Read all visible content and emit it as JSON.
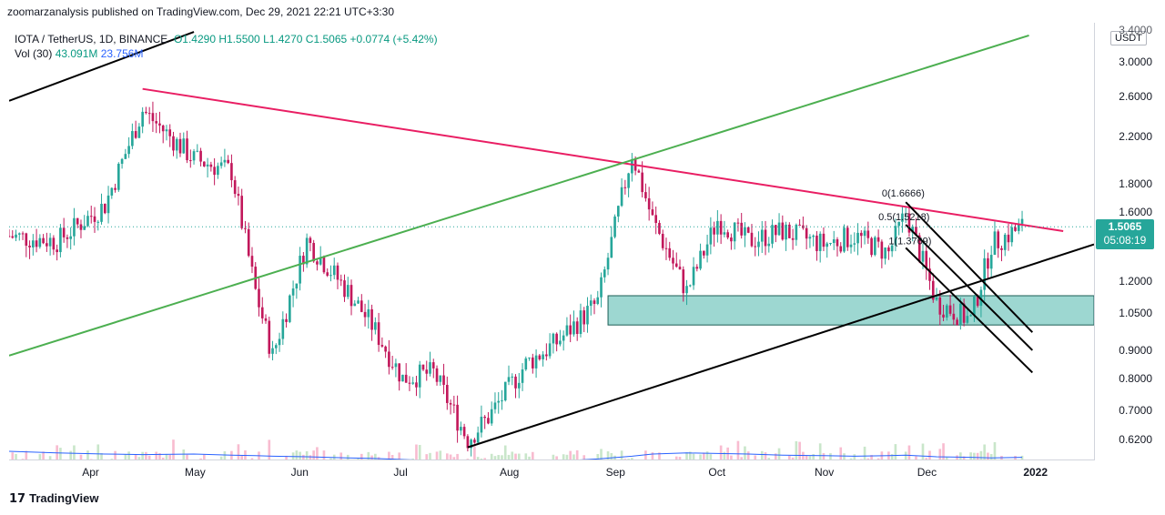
{
  "header": {
    "publisher_line": "zoomarzanalysis published on TradingView.com, Dec 29, 2021 22:21 UTC+3:30"
  },
  "legend": {
    "symbol": "IOTA / TetherUS, 1D, BINANCE",
    "open": "O1.4290",
    "high": "H1.5500",
    "low": "L1.4270",
    "close": "C1.5065",
    "change": "+0.0774 (+5.42%)",
    "vol_label": "Vol (30)",
    "vol_value": "43.091M",
    "vol_ma": "23.756M"
  },
  "price_axis": {
    "currency_badge": "USDT",
    "last_price": "1.5065",
    "countdown": "05:08:19",
    "top_partial_label": "3.4000",
    "ticks": [
      "3.0000",
      "2.6000",
      "2.2000",
      "1.8000",
      "1.6000",
      "1.2000",
      "1.0500",
      "0.9000",
      "0.8000",
      "0.7000",
      "0.6200"
    ]
  },
  "time_axis": {
    "ticks": [
      "Apr",
      "May",
      "Jun",
      "Jul",
      "Aug",
      "Sep",
      "Oct",
      "Nov",
      "Dec",
      "2022"
    ]
  },
  "annotations": {
    "fib_0": "0(1.6666)",
    "fib_05": "0.5(1.5218)",
    "fib_1": "1(1.3769)"
  },
  "colors": {
    "up": "#26a69a",
    "down": "#c2185b",
    "pink_line": "#e91e63",
    "green_line": "#4caf50",
    "black_line": "#000000",
    "zone": "#26a69a",
    "volume_ma": "#2962ff"
  },
  "footer": {
    "brand": "TradingView"
  },
  "chart_data": {
    "type": "candlestick",
    "title": "IOTA / TetherUS, 1D, BINANCE",
    "x_range": [
      "2021-03-08",
      "2022-01-19"
    ],
    "y_scale": "log",
    "y_range": [
      0.58,
      3.4
    ],
    "last_close": 1.5065,
    "series": [
      {
        "name": "IOTA/USDT price (approx.)",
        "x": [
          "2021-03-08",
          "2021-03-22",
          "2021-04-05",
          "2021-04-16",
          "2021-05-01",
          "2021-05-12",
          "2021-05-19",
          "2021-05-24",
          "2021-06-03",
          "2021-06-15",
          "2021-06-22",
          "2021-07-01",
          "2021-07-10",
          "2021-07-20",
          "2021-07-26",
          "2021-08-06",
          "2021-08-15",
          "2021-08-27",
          "2021-09-06",
          "2021-09-12",
          "2021-09-22",
          "2021-10-01",
          "2021-10-10",
          "2021-10-20",
          "2021-11-01",
          "2021-11-10",
          "2021-11-20",
          "2021-11-25",
          "2021-12-04",
          "2021-12-14",
          "2021-12-20",
          "2021-12-29"
        ],
        "y": [
          1.45,
          1.42,
          1.65,
          2.45,
          2.0,
          1.9,
          1.15,
          0.88,
          1.42,
          1.15,
          1.0,
          0.8,
          0.82,
          0.62,
          0.68,
          0.85,
          0.93,
          1.1,
          2.05,
          1.55,
          1.15,
          1.55,
          1.42,
          1.48,
          1.4,
          1.45,
          1.35,
          1.6,
          1.1,
          1.02,
          1.4,
          1.5065
        ]
      }
    ],
    "volume_ma": [
      3.5,
      3.2,
      3.0,
      2.9,
      3.0,
      2.8,
      2.7,
      2.6,
      2.5,
      2.3,
      2.2,
      2.0,
      1.8,
      1.6,
      1.5,
      1.5,
      1.7,
      2.1,
      2.6,
      3.0,
      3.2,
      3.1,
      3.0,
      2.8,
      2.7,
      2.6,
      2.7,
      2.8,
      2.5,
      2.4,
      2.3,
      2.4
    ],
    "zone": {
      "low": 1.0,
      "high": 1.13,
      "from": "2021-08-30",
      "to": "2022-01-19"
    },
    "trendlines": [
      {
        "name": "pink",
        "from": [
          "2021-04-16",
          2.68
        ],
        "to": [
          "2022-01-10",
          1.48
        ]
      },
      {
        "name": "green",
        "from": [
          "2021-03-08",
          0.88
        ],
        "to": [
          "2021-12-31",
          3.35
        ]
      },
      {
        "name": "black-lower",
        "from": [
          "2021-07-20",
          0.6
        ],
        "to": [
          "2022-01-19",
          1.4
        ]
      },
      {
        "name": "black-top",
        "from": [
          "2021-03-08",
          2.55
        ],
        "to": [
          "2021-05-01",
          3.4
        ]
      }
    ]
  }
}
